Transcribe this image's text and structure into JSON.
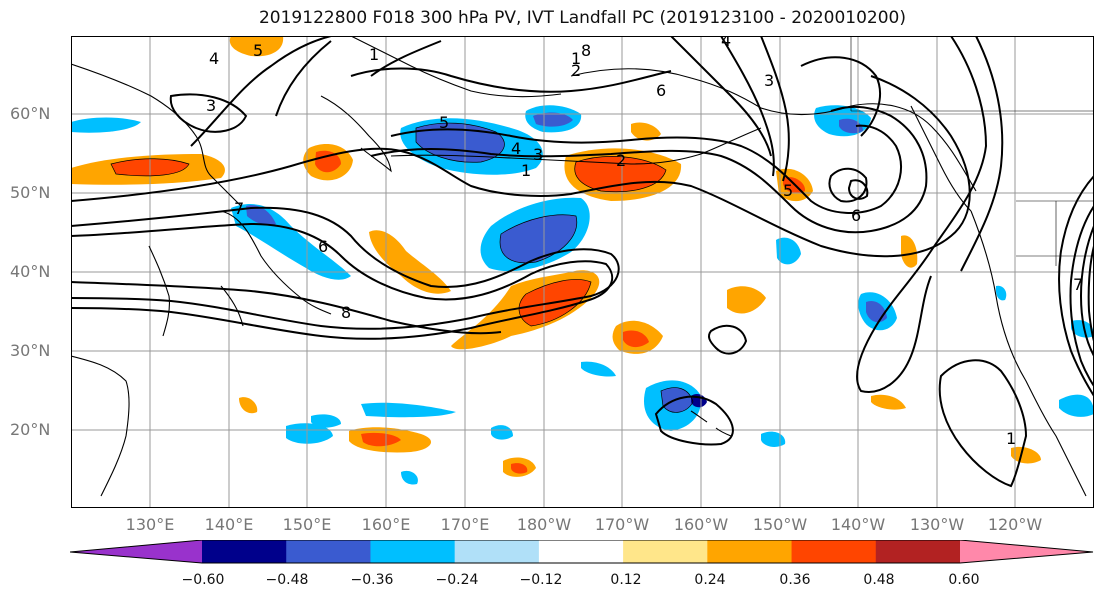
{
  "title": "2019122800 F018 300 hPa PV, IVT Landfall PC (2019123100 - 2020010200)",
  "lat_labels": [
    "60°N",
    "50°N",
    "40°N",
    "30°N",
    "20°N"
  ],
  "lon_labels": [
    "130°E",
    "140°E",
    "150°E",
    "160°E",
    "170°E",
    "180°W",
    "170°W",
    "160°W",
    "150°W",
    "140°W",
    "130°W",
    "120°W"
  ],
  "colorbar": {
    "ticks": [
      "−0.60",
      "−0.48",
      "−0.36",
      "−0.24",
      "−0.12",
      "0.12",
      "0.24",
      "0.36",
      "0.48",
      "0.60"
    ],
    "colors": [
      "#9932CC",
      "#00008B",
      "#3A5BD0",
      "#00BFFF",
      "#B0E0F8",
      "#FFFFFF",
      "#FFE68A",
      "#FFA500",
      "#FF4500",
      "#B22222",
      "#FF88AA"
    ]
  },
  "contour_labels": [
    "1",
    "3",
    "4",
    "5",
    "6",
    "7",
    "8",
    "1",
    "2",
    "3",
    "4",
    "5",
    "6",
    "1",
    "2",
    "3",
    "4",
    "5",
    "6",
    "7",
    "8",
    "1"
  ],
  "colors": {
    "positive_strong": "#FF4500",
    "positive": "#FFA500",
    "positive_weak": "#FFE68A",
    "negative_strong": "#3A5BD0",
    "negative": "#00BFFF",
    "negative_weak": "#B0E0F8",
    "grid": "#999999",
    "contour": "#000000"
  }
}
